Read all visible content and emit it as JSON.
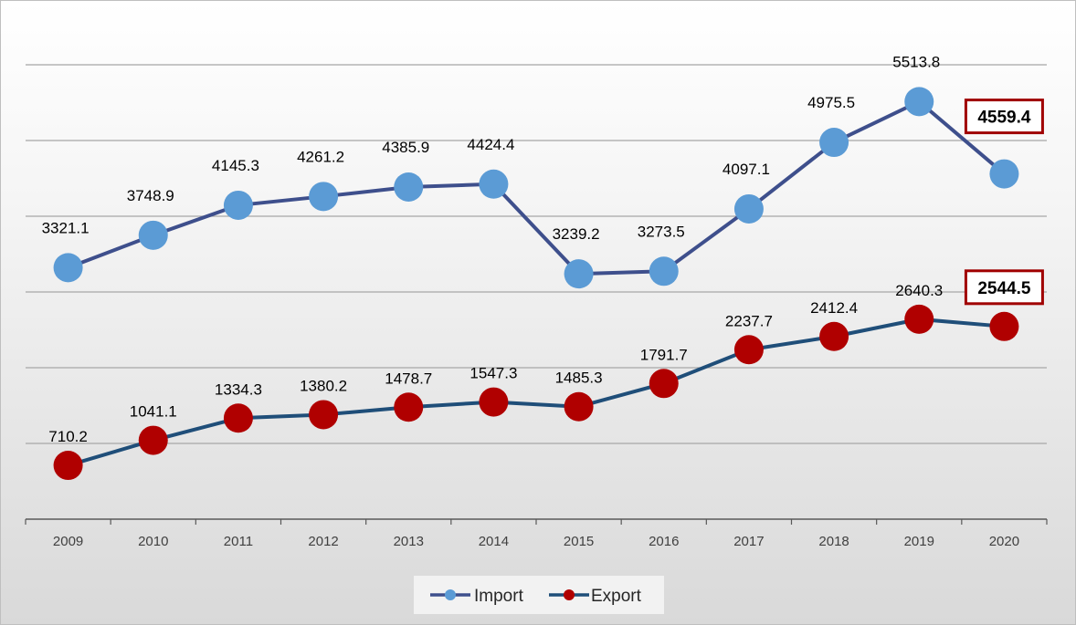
{
  "chart_data": {
    "type": "line",
    "title": "",
    "xlabel": "",
    "ylabel": "",
    "categories": [
      "2009",
      "2010",
      "2011",
      "2012",
      "2013",
      "2014",
      "2015",
      "2016",
      "2017",
      "2018",
      "2019",
      "2020"
    ],
    "ylim": [
      0,
      6000
    ],
    "grid": true,
    "legend_position": "bottom",
    "series": [
      {
        "name": "Import",
        "color": "#3e4f8c",
        "marker_color": "#5b9bd5",
        "values": [
          3321.1,
          3748.9,
          4145.3,
          4261.2,
          4385.9,
          4424.4,
          3239.2,
          3273.5,
          4097.1,
          4975.5,
          5513.8,
          4559.4
        ],
        "labels": [
          "3321.1",
          "3748.9",
          "4145.3",
          "4261.2",
          "4385.9",
          "4424.4",
          "3239.2",
          "3273.5",
          "4097.1",
          "4975.5",
          "5513.8",
          "4559.4"
        ]
      },
      {
        "name": "Export",
        "color": "#1f4e79",
        "marker_color": "#b00000",
        "values": [
          710.2,
          1041.1,
          1334.3,
          1380.2,
          1478.7,
          1547.3,
          1485.3,
          1791.7,
          2237.7,
          2412.4,
          2640.3,
          2544.5
        ],
        "labels": [
          "710.2",
          "1041.1",
          "1334.3",
          "1380.2",
          "1478.7",
          "1547.3",
          "1485.3",
          "1791.7",
          "2237.7",
          "2412.4",
          "2640.3",
          "2544.5"
        ]
      }
    ],
    "highlight_border_color": "#a00000"
  }
}
